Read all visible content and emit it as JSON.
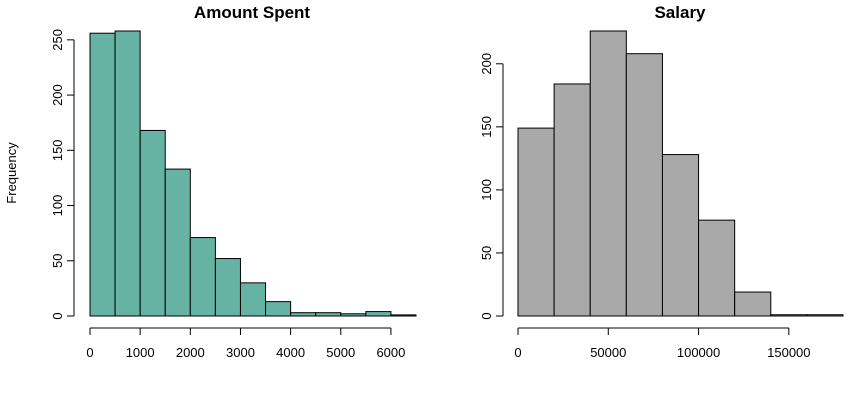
{
  "chart_data": [
    {
      "type": "bar",
      "title": "Amount Spent",
      "xlabel": "",
      "ylabel": "Frequency",
      "bar_color": "#66b3a3",
      "bin_edges": [
        0,
        500,
        1000,
        1500,
        2000,
        2500,
        3000,
        3500,
        4000,
        4500,
        5000,
        5500,
        6000,
        6500
      ],
      "values": [
        256,
        258,
        168,
        133,
        71,
        52,
        30,
        13,
        3,
        3,
        2,
        4,
        1
      ],
      "xlim": [
        0,
        6500
      ],
      "ylim": [
        0,
        258
      ],
      "xticks": [
        0,
        1000,
        2000,
        3000,
        4000,
        5000,
        6000
      ],
      "yticks": [
        0,
        50,
        100,
        150,
        200,
        250
      ],
      "grid": false
    },
    {
      "type": "bar",
      "title": "Salary",
      "xlabel": "",
      "ylabel": "",
      "bar_color": "#a9a9a9",
      "bin_edges": [
        0,
        20000,
        40000,
        60000,
        80000,
        100000,
        120000,
        140000,
        160000,
        180000
      ],
      "values": [
        149,
        184,
        226,
        208,
        128,
        76,
        19,
        1,
        1
      ],
      "xlim": [
        0,
        180000
      ],
      "ylim": [
        0,
        226
      ],
      "xticks": [
        0,
        50000,
        100000,
        150000
      ],
      "yticks": [
        0,
        50,
        100,
        150,
        200
      ],
      "grid": false
    }
  ]
}
